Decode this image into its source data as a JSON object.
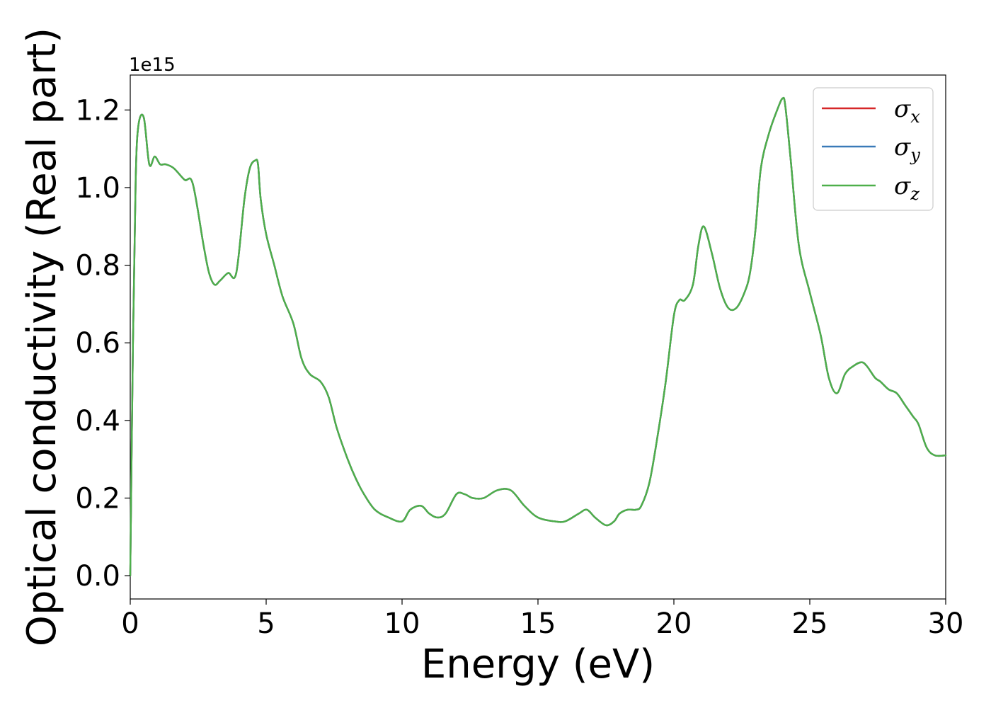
{
  "chart_data": {
    "type": "line",
    "xlabel": "Energy (eV)",
    "ylabel": "Optical conductivity (Real part)",
    "y_offset_label": "1e15",
    "xlim": [
      0,
      30
    ],
    "ylim": [
      -0.06,
      1.29
    ],
    "xticks": [
      0,
      5,
      10,
      15,
      20,
      25,
      30
    ],
    "yticks": [
      0.0,
      0.2,
      0.4,
      0.6,
      0.8,
      1.0,
      1.2
    ],
    "xtick_labels": [
      "0",
      "5",
      "10",
      "15",
      "20",
      "25",
      "30"
    ],
    "ytick_labels": [
      "0.0",
      "0.2",
      "0.4",
      "0.6",
      "0.8",
      "1.0",
      "1.2"
    ],
    "legend_position": "top-right",
    "grid": false,
    "series": [
      {
        "name": "σx",
        "symbol": "σ",
        "subscript": "x",
        "color": "#d62728"
      },
      {
        "name": "σy",
        "symbol": "σ",
        "subscript": "y",
        "color": "#3a7ab8"
      },
      {
        "name": "σz",
        "symbol": "σ",
        "subscript": "z",
        "color": "#4daf4a"
      }
    ],
    "x": [
      0,
      0.1,
      0.2,
      0.3,
      0.5,
      0.7,
      0.9,
      1.1,
      1.3,
      1.6,
      2.0,
      2.3,
      2.7,
      2.9,
      3.1,
      3.3,
      3.6,
      3.9,
      4.2,
      4.4,
      4.6,
      4.7,
      4.8,
      5.0,
      5.3,
      5.6,
      6.0,
      6.3,
      6.6,
      7.0,
      7.3,
      7.6,
      8.0,
      8.3,
      8.6,
      9.0,
      9.5,
      10.0,
      10.3,
      10.7,
      11.0,
      11.3,
      11.6,
      12.0,
      12.3,
      12.6,
      13.0,
      13.5,
      14.0,
      14.5,
      15.0,
      15.6,
      16.0,
      16.5,
      16.8,
      17.1,
      17.5,
      17.8,
      18.0,
      18.3,
      18.6,
      18.8,
      19.1,
      19.4,
      19.7,
      20.0,
      20.2,
      20.4,
      20.7,
      20.9,
      21.1,
      21.4,
      21.7,
      22.0,
      22.3,
      22.6,
      22.8,
      23.0,
      23.2,
      23.5,
      23.8,
      24.0,
      24.1,
      24.3,
      24.6,
      25.0,
      25.4,
      25.7,
      26.0,
      26.3,
      26.6,
      26.9,
      27.1,
      27.4,
      27.6,
      27.9,
      28.2,
      28.5,
      28.8,
      29.0,
      29.3,
      29.6,
      30.0
    ],
    "values": [
      0.0,
      0.6,
      1.02,
      1.16,
      1.18,
      1.06,
      1.08,
      1.06,
      1.06,
      1.05,
      1.02,
      1.01,
      0.85,
      0.78,
      0.75,
      0.76,
      0.78,
      0.78,
      0.97,
      1.05,
      1.07,
      1.06,
      0.97,
      0.88,
      0.8,
      0.72,
      0.65,
      0.56,
      0.52,
      0.5,
      0.46,
      0.38,
      0.3,
      0.25,
      0.21,
      0.17,
      0.15,
      0.14,
      0.17,
      0.18,
      0.16,
      0.15,
      0.16,
      0.21,
      0.21,
      0.2,
      0.2,
      0.22,
      0.22,
      0.18,
      0.15,
      0.14,
      0.14,
      0.16,
      0.17,
      0.15,
      0.13,
      0.14,
      0.16,
      0.17,
      0.17,
      0.18,
      0.24,
      0.36,
      0.5,
      0.67,
      0.71,
      0.71,
      0.75,
      0.85,
      0.9,
      0.83,
      0.74,
      0.69,
      0.69,
      0.73,
      0.78,
      0.89,
      1.05,
      1.14,
      1.2,
      1.23,
      1.21,
      1.07,
      0.85,
      0.73,
      0.62,
      0.51,
      0.47,
      0.52,
      0.54,
      0.55,
      0.54,
      0.51,
      0.5,
      0.48,
      0.47,
      0.44,
      0.41,
      0.39,
      0.33,
      0.31,
      0.31
    ]
  }
}
